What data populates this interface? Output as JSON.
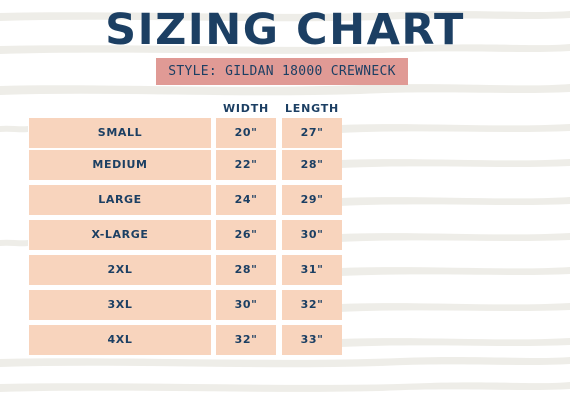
{
  "title": "SIZING CHART",
  "subtitle": "STYLE: GILDAN 18000 CREWNECK",
  "columns": {
    "width": "WIDTH",
    "length": "LENGTH"
  },
  "rows": [
    {
      "size": "SMALL",
      "width": "20\"",
      "length": "27\""
    },
    {
      "size": "MEDIUM",
      "width": "22\"",
      "length": "28\""
    },
    {
      "size": "LARGE",
      "width": "24\"",
      "length": "29\""
    },
    {
      "size": "X-LARGE",
      "width": "26\"",
      "length": "30\""
    },
    {
      "size": "2XL",
      "width": "28\"",
      "length": "31\""
    },
    {
      "size": "3XL",
      "width": "30\"",
      "length": "32\""
    },
    {
      "size": "4XL",
      "width": "32\"",
      "length": "33\""
    }
  ],
  "colors": {
    "title": "#1c3f63",
    "subtitle_bg": "#e09a95",
    "cell_bg": "#f8d4bd",
    "stripe": "#eeede8"
  }
}
